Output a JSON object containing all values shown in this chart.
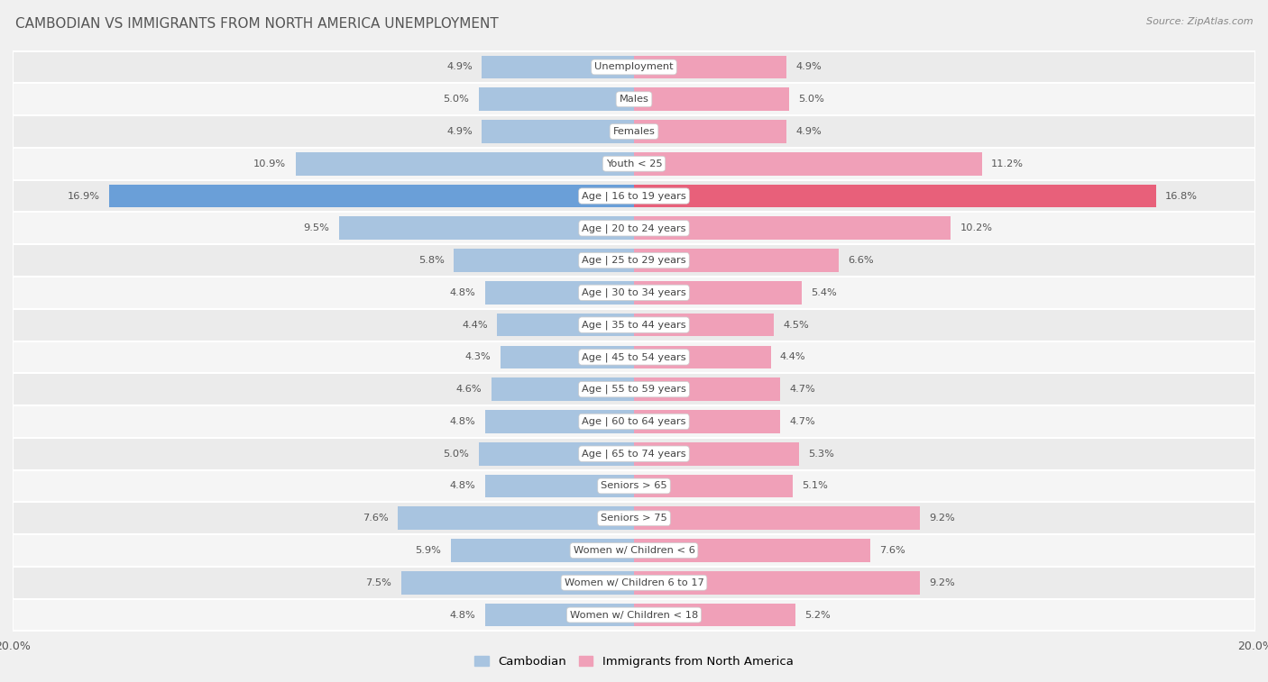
{
  "title": "CAMBODIAN VS IMMIGRANTS FROM NORTH AMERICA UNEMPLOYMENT",
  "source": "Source: ZipAtlas.com",
  "categories": [
    "Unemployment",
    "Males",
    "Females",
    "Youth < 25",
    "Age | 16 to 19 years",
    "Age | 20 to 24 years",
    "Age | 25 to 29 years",
    "Age | 30 to 34 years",
    "Age | 35 to 44 years",
    "Age | 45 to 54 years",
    "Age | 55 to 59 years",
    "Age | 60 to 64 years",
    "Age | 65 to 74 years",
    "Seniors > 65",
    "Seniors > 75",
    "Women w/ Children < 6",
    "Women w/ Children 6 to 17",
    "Women w/ Children < 18"
  ],
  "cambodian": [
    4.9,
    5.0,
    4.9,
    10.9,
    16.9,
    9.5,
    5.8,
    4.8,
    4.4,
    4.3,
    4.6,
    4.8,
    5.0,
    4.8,
    7.6,
    5.9,
    7.5,
    4.8
  ],
  "immigrants": [
    4.9,
    5.0,
    4.9,
    11.2,
    16.8,
    10.2,
    6.6,
    5.4,
    4.5,
    4.4,
    4.7,
    4.7,
    5.3,
    5.1,
    9.2,
    7.6,
    9.2,
    5.2
  ],
  "cambodian_color": "#a8c4e0",
  "immigrants_color": "#f0a0b8",
  "highlight_cambodian_color": "#6a9fd8",
  "highlight_immigrants_color": "#e8607a",
  "row_color_even": "#ebebeb",
  "row_color_odd": "#f5f5f5",
  "background_color": "#f0f0f0",
  "max_val": 20.0,
  "legend_cambodian": "Cambodian",
  "legend_immigrants": "Immigrants from North America"
}
